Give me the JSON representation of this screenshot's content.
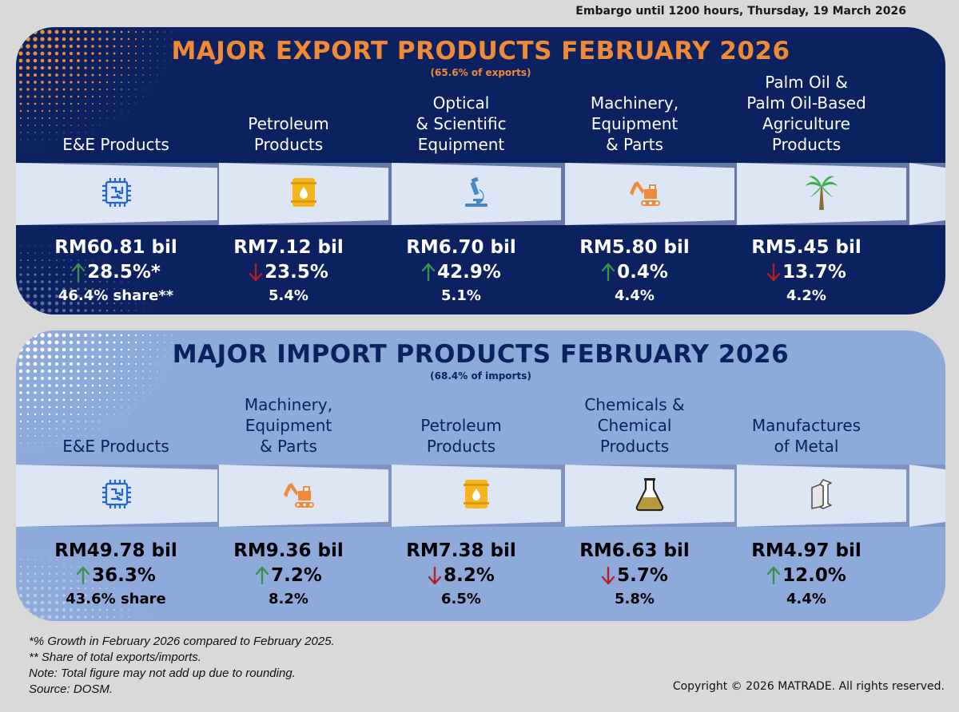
{
  "embargo": "Embargo until 1200 hours, Thursday, 19 March 2026",
  "exports": {
    "title": "MAJOR EXPORT PRODUCTS FEBRUARY 2026",
    "subtitle": "(65.6% of exports)",
    "items": [
      {
        "name": "E&E Products",
        "icon": "chip-icon",
        "value": "RM60.81 bil",
        "growth": "28.5%*",
        "direction": "up",
        "share": "46.4% share**"
      },
      {
        "name": "Petroleum\nProducts",
        "icon": "oil-barrel-icon",
        "value": "RM7.12 bil",
        "growth": "23.5%",
        "direction": "down",
        "share": "5.4%"
      },
      {
        "name": "Optical\n& Scientific\nEquipment",
        "icon": "microscope-icon",
        "value": "RM6.70 bil",
        "growth": "42.9%",
        "direction": "up",
        "share": "5.1%"
      },
      {
        "name": "Machinery,\nEquipment\n& Parts",
        "icon": "excavator-icon",
        "value": "RM5.80 bil",
        "growth": "0.4%",
        "direction": "up",
        "share": "4.4%"
      },
      {
        "name": "Palm Oil &\nPalm Oil-Based\nAgriculture\nProducts",
        "icon": "palm-tree-icon",
        "value": "RM5.45 bil",
        "growth": "13.7%",
        "direction": "down",
        "share": "4.2%"
      }
    ]
  },
  "imports": {
    "title": "MAJOR IMPORT PRODUCTS FEBRUARY 2026",
    "subtitle": "(68.4% of imports)",
    "items": [
      {
        "name": "E&E Products",
        "icon": "chip-icon",
        "value": "RM49.78 bil",
        "growth": "36.3%",
        "direction": "up",
        "share": "43.6% share"
      },
      {
        "name": "Machinery,\nEquipment\n& Parts",
        "icon": "excavator-icon",
        "value": "RM9.36 bil",
        "growth": "7.2%",
        "direction": "up",
        "share": "8.2%"
      },
      {
        "name": "Petroleum\nProducts",
        "icon": "oil-barrel-icon",
        "value": "RM7.38 bil",
        "growth": "8.2%",
        "direction": "down",
        "share": "6.5%"
      },
      {
        "name": "Chemicals &\nChemical\nProducts",
        "icon": "flask-icon",
        "value": "RM6.63 bil",
        "growth": "5.7%",
        "direction": "down",
        "share": "5.8%"
      },
      {
        "name": "Manufactures\nof Metal",
        "icon": "steel-beam-icon",
        "value": "RM4.97 bil",
        "growth": "12.0%",
        "direction": "up",
        "share": "4.4%"
      }
    ]
  },
  "notes": [
    "*% Growth in February 2026 compared to February 2025.",
    "** Share of total exports/imports.",
    "Note: Total figure may not add up due to rounding.",
    "Source: DOSM."
  ],
  "copyright": "Copyright © 2026 MATRADE. All rights reserved.",
  "colors": {
    "export_bg": "#0b2160",
    "import_bg": "#8eaadb",
    "export_title": "#f08a36",
    "up_arrow": "#3f8f4f",
    "down_arrow": "#b51f24",
    "icon_orange": "#f08a36"
  }
}
